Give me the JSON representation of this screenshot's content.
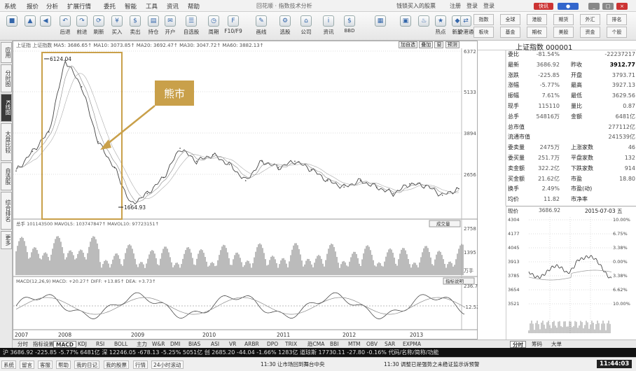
{
  "menu": {
    "items": [
      "系统",
      "报价",
      "分析",
      "扩展行情",
      "委托",
      "智能",
      "工具",
      "资讯",
      "帮助"
    ],
    "title": "回花顺 · 指数技术分析",
    "right": [
      "钱锁买入的股票",
      "注册",
      "登录",
      "登录"
    ],
    "brand": "快讯"
  },
  "toolbar": {
    "buttons": [
      "",
      "",
      "",
      "后退",
      "前进",
      "刷新",
      "买入",
      "卖出",
      "持仓",
      "开户",
      "自选股",
      "周期",
      "F10/F9",
      "画线",
      "选股",
      "公司",
      "资讯",
      "",
      "BBD",
      "",
      "",
      "",
      "热点",
      "新股",
      "沪港通"
    ],
    "grid": [
      "指数",
      "全球",
      "港股",
      "期货",
      "外汇",
      "排名",
      "板块",
      "基金",
      "期权",
      "美股",
      "资金",
      "个股"
    ]
  },
  "leftbar": {
    "tabs": [
      "应用",
      "分时图",
      "K线图",
      "大盘比较",
      "自选股",
      "综合排名",
      "更多"
    ]
  },
  "chart": {
    "header_main": "上证指 上证指数 MA5: 3686.65↑  MA10: 3073.85↑  MA20: 3692.47↑  MA30: 3047.72↑  MA60: 3882.13↑",
    "header_btns": [
      "加自选",
      "叠加",
      "窗",
      "预测"
    ],
    "annotation": "熊市",
    "high_label": "6124.04",
    "low_label": "1664.93",
    "y_labels": [
      "6372",
      "5133",
      "3894",
      "2656"
    ],
    "vol_header": "总手 101143500  MAVOL5: 103747847↑  MAVOL10: 97723151↑",
    "vol_btn": "成交量",
    "vol_labels": [
      "2758",
      "1395",
      "万手"
    ],
    "macd_header": "MACD(12,26,9)  MACD: +20.27↑  DIFF: +13.85↑  DEA: +3.73↑",
    "macd_btn": "指标说明",
    "macd_labels": [
      "236.7",
      "-12.52"
    ],
    "x_labels": [
      "2007",
      "2008",
      "2009",
      "2010",
      "2011",
      "2012",
      "2013"
    ]
  },
  "chart_data": {
    "type": "line",
    "title": "上证指数",
    "x": [
      "2007-01",
      "2007-04",
      "2007-07",
      "2007-10",
      "2008-01",
      "2008-04",
      "2008-07",
      "2008-10",
      "2009-01",
      "2009-04",
      "2009-07",
      "2009-10",
      "2010-01",
      "2010-04",
      "2010-07",
      "2010-10",
      "2011-01",
      "2011-04",
      "2011-07",
      "2011-10",
      "2012-01",
      "2012-04",
      "2012-07",
      "2012-10",
      "2013-01",
      "2013-04",
      "2013-07",
      "2013-10"
    ],
    "series": [
      {
        "name": "上证指数",
        "values": [
          2700,
          3300,
          3900,
          6124,
          5300,
          3600,
          2800,
          1665,
          2000,
          2500,
          3400,
          3000,
          3200,
          2900,
          2400,
          3000,
          2800,
          3000,
          2750,
          2400,
          2200,
          2400,
          2200,
          2000,
          2300,
          2250,
          1950,
          2150
        ]
      }
    ],
    "ylim": [
      1300,
      6400
    ]
  },
  "right_panel": {
    "title": "上证指数 000001",
    "rows": [
      [
        "委比",
        "-81.54%",
        "",
        "-22237217"
      ],
      [
        "最新",
        "3686.92",
        "昨收",
        "3912.77"
      ],
      [
        "涨跌",
        "-225.85",
        "开盘",
        "3793.71"
      ],
      [
        "涨幅",
        "-5.77%",
        "最高",
        "3927.13"
      ],
      [
        "振幅",
        "7.61%",
        "最低",
        "3629.56"
      ],
      [
        "现手",
        "115110",
        "量比",
        "0.87"
      ],
      [
        "总手",
        "54816万",
        "金额",
        "6481亿"
      ],
      [
        "总市值",
        "",
        "",
        "277112亿"
      ],
      [
        "流通市值",
        "",
        "",
        "241539亿"
      ],
      [
        "委卖量",
        "2475万",
        "上涨家数",
        "46"
      ],
      [
        "委买量",
        "251.7万",
        "平盘家数",
        "132"
      ],
      [
        "卖金额",
        "322.2亿",
        "下跌家数",
        "914"
      ],
      [
        "买金额",
        "21.62亿",
        "市盈",
        "18.80"
      ],
      [
        "换手",
        "2.49%",
        "市盈(动)",
        ""
      ],
      [
        "均价",
        "11.82",
        "市净率",
        ""
      ]
    ],
    "mini_header": [
      "现价",
      "3686.92",
      "2015-07-03 五"
    ],
    "mini_left": [
      "4304",
      "4177",
      "4045",
      "3913",
      "3785",
      "3654",
      "3521"
    ],
    "mini_right": [
      "10.00%",
      "6.75%",
      "3.38%",
      "0.00%",
      "3.38%",
      "6.62%",
      "10.00%"
    ],
    "tabs": [
      "分时",
      "筹码",
      "大单"
    ]
  },
  "bottom_tabs": [
    "分时",
    "指标设置",
    "MACD",
    "KDJ",
    "RSI",
    "BOLL",
    "主力",
    "W&R",
    "DMI",
    "BIAS",
    "ASI",
    "VR",
    "ARBR",
    "DPO",
    "TRIX",
    "趋CMA",
    "BBI",
    "MTM",
    "OBV",
    "SAR",
    "EXPMA"
  ],
  "ticker": "沪 3686.92 -225.85 -5.77% 6481亿 深 12246.05 -678.13 -5.25% 5051亿 创 2685.20 -44.04 -1.66% 1283亿 道琼斯 17730.11 -27.80 -0.16% 代码/名称/简称/功能",
  "status": {
    "items": [
      "系统",
      "留言",
      "客服",
      "帮助",
      "我的日记",
      "我的股票",
      "行情",
      "24小时滚动"
    ],
    "news": "11:30 让市场回到舞台中央",
    "news2": "11:30 调整已是强势之未稳证监示诉预警",
    "time": "11:44:03"
  }
}
